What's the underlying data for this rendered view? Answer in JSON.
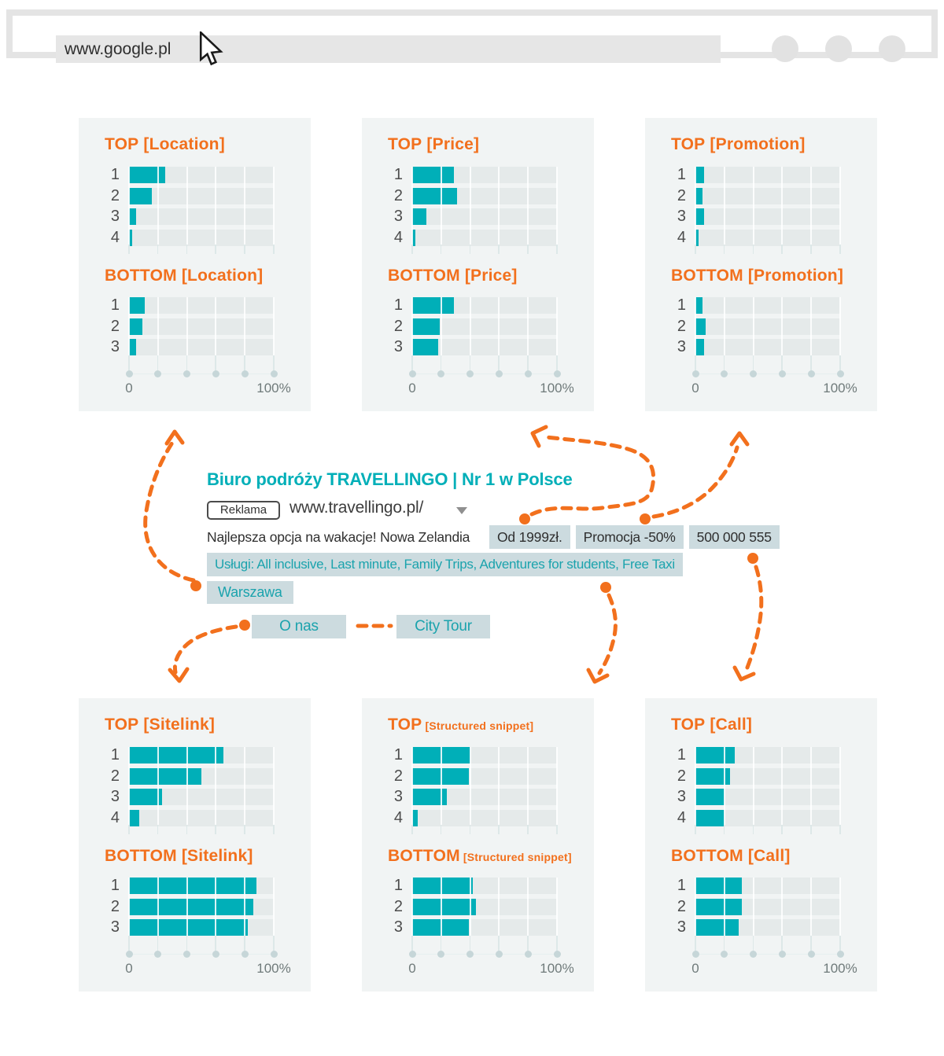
{
  "browser": {
    "url": "www.google.pl",
    "window_buttons": [
      "button-1",
      "button-2",
      "button-3"
    ]
  },
  "ad": {
    "title": "Biuro podróży TRAVELLINGO | Nr 1 w Polsce",
    "badge": "Reklama",
    "display_url": "www.travellingo.pl/",
    "description": "Najlepsza opcja na wakacje! Nowa Zelandia",
    "callouts": [
      "Od 1999zł.",
      "Promocja -50%",
      "500 000 555"
    ],
    "snippet": "Usługi: All inclusive, Last minute, Family Trips, Adventures for students, Free Taxi",
    "location": "Warszawa",
    "sitelinks": [
      "O nas",
      "City Tour"
    ]
  },
  "chart_data": {
    "type": "bar",
    "orientation": "horizontal",
    "xlim": [
      0,
      100
    ],
    "x_axis": {
      "min_label": "0",
      "max_label": "100%",
      "gridlines_pct": [
        0,
        20,
        40,
        60,
        80,
        100
      ]
    },
    "panels": [
      {
        "id": "location",
        "small_bracket": false,
        "top": {
          "title_main": "TOP",
          "title_bracket": "[Location]",
          "categories": [
            "1",
            "2",
            "3",
            "4"
          ],
          "values": [
            25,
            16,
            5,
            2
          ]
        },
        "bottom": {
          "title_main": "BOTTOM",
          "title_bracket": "[Location]",
          "categories": [
            "1",
            "2",
            "3"
          ],
          "values": [
            11,
            9,
            5
          ]
        }
      },
      {
        "id": "price",
        "small_bracket": false,
        "top": {
          "title_main": "TOP",
          "title_bracket": "[Price]",
          "categories": [
            "1",
            "2",
            "3",
            "4"
          ],
          "values": [
            29,
            31,
            10,
            2
          ]
        },
        "bottom": {
          "title_main": "BOTTOM",
          "title_bracket": "[Price]",
          "categories": [
            "1",
            "2",
            "3"
          ],
          "values": [
            29,
            19,
            18
          ]
        }
      },
      {
        "id": "promotion",
        "small_bracket": false,
        "top": {
          "title_main": "TOP",
          "title_bracket": "[Promotion]",
          "categories": [
            "1",
            "2",
            "3",
            "4"
          ],
          "values": [
            6,
            5,
            6,
            2
          ]
        },
        "bottom": {
          "title_main": "BOTTOM",
          "title_bracket": "[Promotion]",
          "categories": [
            "1",
            "2",
            "3"
          ],
          "values": [
            5,
            7,
            6
          ]
        }
      },
      {
        "id": "sitelink",
        "small_bracket": false,
        "top": {
          "title_main": "TOP",
          "title_bracket": "[Sitelink]",
          "categories": [
            "1",
            "2",
            "3",
            "4"
          ],
          "values": [
            65,
            50,
            23,
            7
          ]
        },
        "bottom": {
          "title_main": "BOTTOM",
          "title_bracket": "[Sitelink]",
          "categories": [
            "1",
            "2",
            "3"
          ],
          "values": [
            88,
            86,
            82
          ]
        }
      },
      {
        "id": "structured-snippet",
        "small_bracket": true,
        "top": {
          "title_main": "TOP",
          "title_bracket": "[Structured snippet]",
          "categories": [
            "1",
            "2",
            "3",
            "4"
          ],
          "values": [
            40,
            39,
            24,
            4
          ]
        },
        "bottom": {
          "title_main": "BOTTOM",
          "title_bracket": "[Structured snippet]",
          "categories": [
            "1",
            "2",
            "3"
          ],
          "values": [
            42,
            44,
            39
          ]
        }
      },
      {
        "id": "call",
        "small_bracket": false,
        "top": {
          "title_main": "TOP",
          "title_bracket": "[Call]",
          "categories": [
            "1",
            "2",
            "3",
            "4"
          ],
          "values": [
            27,
            24,
            20,
            20
          ]
        },
        "bottom": {
          "title_main": "BOTTOM",
          "title_bracket": "[Call]",
          "categories": [
            "1",
            "2",
            "3"
          ],
          "values": [
            32,
            32,
            30
          ]
        }
      }
    ]
  },
  "colors": {
    "teal": "#00afb8",
    "orange": "#f2701d",
    "chip_bg": "#ccdbdf",
    "chip_teal": "#1ba3ad",
    "panel_bg": "#f1f4f4",
    "track_bg": "#e5eaea"
  }
}
